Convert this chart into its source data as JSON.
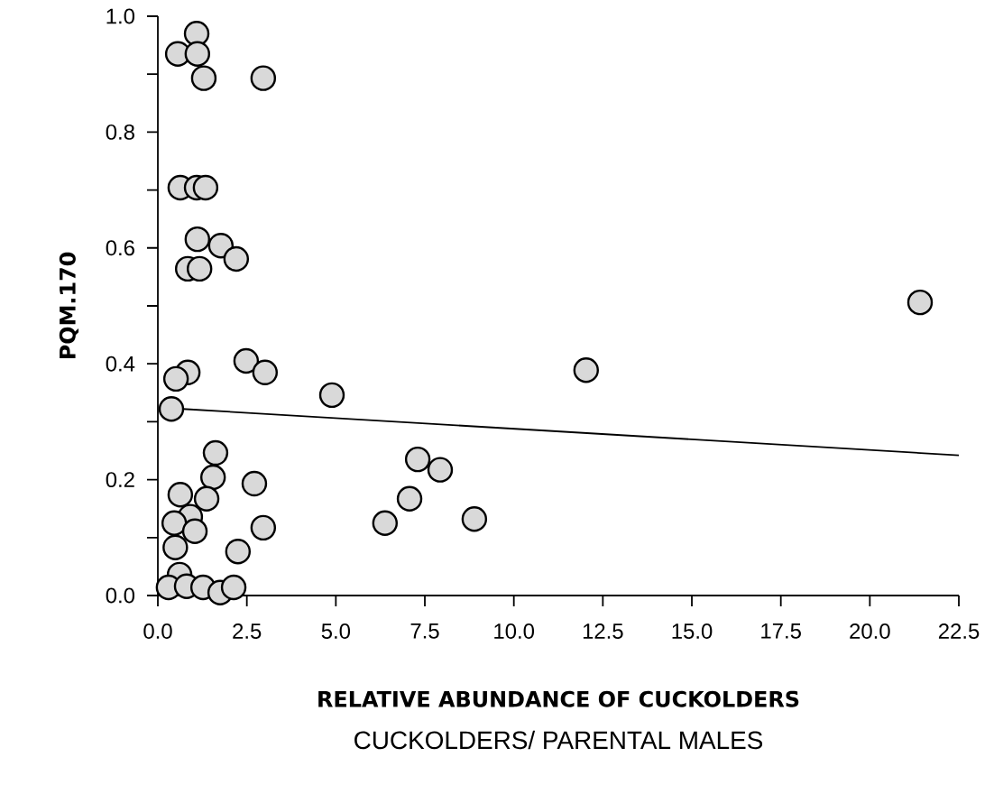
{
  "chart_data": {
    "type": "scatter",
    "xlabel": "RELATIVE ABUNDANCE OF CUCKOLDERS",
    "ylabel": "PQM.170",
    "annotations": [
      "CUCKOLDERS/ PARENTAL MALES"
    ],
    "xlim": [
      0,
      22.5
    ],
    "ylim": [
      0,
      1.0
    ],
    "xticks": [
      {
        "value": 0,
        "label": "0.0"
      },
      2.5,
      {
        "value": 5,
        "label": "5.0"
      },
      7.5,
      {
        "value": 10,
        "label": "10.0"
      },
      12.5,
      {
        "value": 15,
        "label": "15.0"
      },
      17.5,
      {
        "value": 20,
        "label": "20.0"
      },
      22.5
    ],
    "yticks": [
      {
        "value": 0,
        "label": "0.0"
      },
      {
        "value": 0.1,
        "label": null
      },
      0.2,
      {
        "value": 0.3,
        "label": null
      },
      0.4,
      {
        "value": 0.5,
        "label": null
      },
      0.6,
      {
        "value": 0.7,
        "label": null
      },
      0.8,
      {
        "value": 0.9,
        "label": null
      },
      {
        "value": 1.0,
        "label": "1.0"
      }
    ],
    "grid": false,
    "legend": false,
    "series": [
      {
        "marker": "circle",
        "color": "#d9d9d9",
        "x": [
          1.09,
          0.56,
          1.11,
          1.29,
          2.96,
          0.63,
          1.09,
          1.34,
          1.11,
          1.77,
          2.2,
          0.84,
          1.17,
          2.48,
          3.01,
          0.84,
          0.51,
          4.89,
          0.38,
          1.62,
          1.55,
          1.37,
          2.71,
          0.63,
          0.91,
          0.46,
          1.04,
          2.96,
          0.49,
          2.25,
          0.61,
          0.3,
          0.81,
          1.27,
          1.75,
          2.13,
          7.3,
          7.93,
          7.07,
          6.38,
          8.89,
          12.03,
          21.41
        ],
        "values": [
          0.97,
          0.935,
          0.935,
          0.893,
          0.893,
          0.704,
          0.704,
          0.704,
          0.615,
          0.604,
          0.581,
          0.564,
          0.564,
          0.405,
          0.385,
          0.385,
          0.374,
          0.346,
          0.322,
          0.246,
          0.204,
          0.167,
          0.193,
          0.174,
          0.136,
          0.125,
          0.111,
          0.117,
          0.083,
          0.076,
          0.036,
          0.014,
          0.016,
          0.014,
          0.005,
          0.014,
          0.235,
          0.217,
          0.167,
          0.125,
          0.132,
          0.389,
          0.506
        ]
      },
      {
        "type": "line",
        "marker": "none",
        "line_style": "solid",
        "color": "#000000",
        "x": [
          0.7,
          22.5
        ],
        "values": [
          0.322,
          0.242
        ]
      }
    ]
  }
}
